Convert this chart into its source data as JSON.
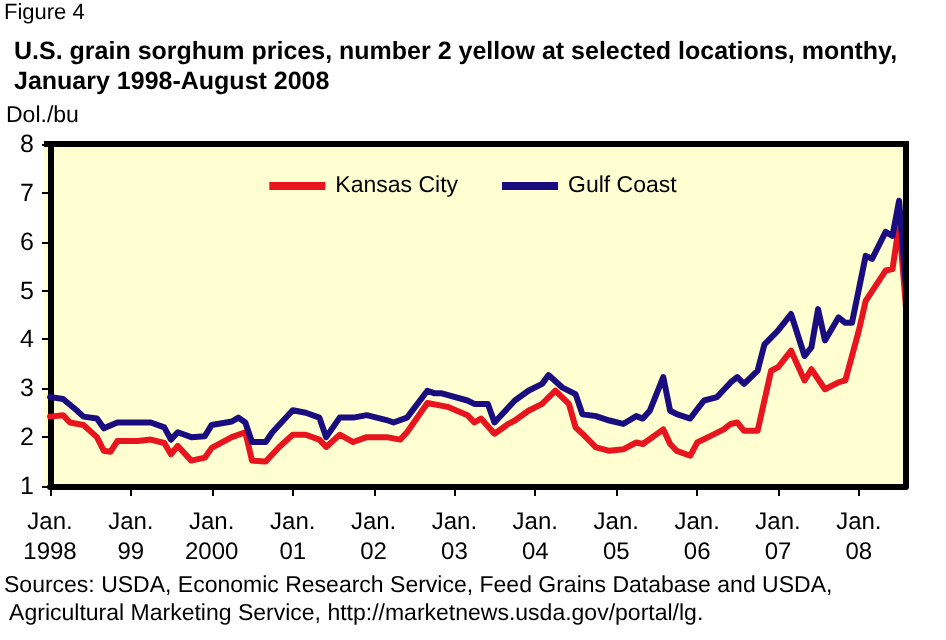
{
  "chart_data": {
    "type": "line",
    "title": "U.S. grain sorghum prices, number 2 yellow at selected locations, monthy, January 1998-August 2008",
    "ylabel": "Dol./bu",
    "annotations": [
      "Figure 4",
      "Sources: USDA, Economic Research Service, Feed Grains Database and USDA, Agricultural Marketing Service, http://marketnews.usda.gov/portal/lg."
    ],
    "xlim": [
      "1998-01",
      "2008-08"
    ],
    "xticks": [
      {
        "value": "1998-01",
        "label": "Jan.\n1998"
      },
      {
        "value": "1999-01",
        "label": "Jan.\n99"
      },
      {
        "value": "2000-01",
        "label": "Jan.\n2000"
      },
      {
        "value": "2001-01",
        "label": "Jan.\n01"
      },
      {
        "value": "2002-01",
        "label": "Jan.\n02"
      },
      {
        "value": "2003-01",
        "label": "Jan.\n03"
      },
      {
        "value": "2004-01",
        "label": "Jan.\n04"
      },
      {
        "value": "2005-01",
        "label": "Jan.\n05"
      },
      {
        "value": "2006-01",
        "label": "Jan.\n06"
      },
      {
        "value": "2007-01",
        "label": "Jan.\n07"
      },
      {
        "value": "2008-01",
        "label": "Jan.\n08"
      }
    ],
    "ylim": [
      1,
      8
    ],
    "yticks": [
      1,
      2,
      3,
      4,
      5,
      6,
      7,
      8
    ],
    "grid": false,
    "legend": "top",
    "marker": "none",
    "line_style": "solid",
    "series": [
      {
        "name": "Kansas City",
        "color": "#e8141e",
        "x": [
          "1998-01",
          "1998-03",
          "1998-04",
          "1998-06",
          "1998-08",
          "1998-09",
          "1998-10",
          "1998-11",
          "1999-02",
          "1999-04",
          "1999-06",
          "1999-07",
          "1999-08",
          "1999-10",
          "1999-12",
          "2000-01",
          "2000-04",
          "2000-06",
          "2000-07",
          "2000-09",
          "2000-11",
          "2001-01",
          "2001-03",
          "2001-05",
          "2001-06",
          "2001-08",
          "2001-10",
          "2001-12",
          "2002-03",
          "2002-05",
          "2002-06",
          "2002-09",
          "2002-12",
          "2003-03",
          "2003-04",
          "2003-05",
          "2003-07",
          "2003-09",
          "2003-10",
          "2003-12",
          "2004-02",
          "2004-04",
          "2004-06",
          "2004-07",
          "2004-08",
          "2004-10",
          "2004-12",
          "2005-02",
          "2005-04",
          "2005-05",
          "2005-08",
          "2005-09",
          "2005-10",
          "2005-12",
          "2006-01",
          "2006-03",
          "2006-05",
          "2006-06",
          "2006-07",
          "2006-08",
          "2006-10",
          "2006-12",
          "2007-01",
          "2007-03",
          "2007-05",
          "2007-06",
          "2007-08",
          "2007-10",
          "2007-11",
          "2008-01",
          "2008-02",
          "2008-05",
          "2008-06",
          "2008-07",
          "2008-08"
        ],
        "values": [
          2.42,
          2.45,
          2.3,
          2.25,
          2.0,
          1.72,
          1.7,
          1.92,
          1.92,
          1.95,
          1.88,
          1.65,
          1.82,
          1.52,
          1.58,
          1.78,
          2.0,
          2.1,
          1.52,
          1.5,
          1.8,
          2.05,
          2.05,
          1.95,
          1.8,
          2.05,
          1.9,
          2.0,
          2.0,
          1.95,
          2.1,
          2.7,
          2.62,
          2.45,
          2.3,
          2.38,
          2.07,
          2.27,
          2.34,
          2.54,
          2.68,
          2.95,
          2.68,
          2.2,
          2.07,
          1.79,
          1.72,
          1.75,
          1.89,
          1.86,
          2.16,
          1.86,
          1.72,
          1.62,
          1.89,
          2.02,
          2.16,
          2.27,
          2.3,
          2.13,
          2.13,
          3.36,
          3.43,
          3.77,
          3.16,
          3.39,
          2.98,
          3.12,
          3.16,
          4.18,
          4.79,
          5.41,
          5.44,
          6.36,
          4.66
        ]
      },
      {
        "name": "Gulf Coast",
        "color": "#1a0d80",
        "x": [
          "1998-01",
          "1998-03",
          "1998-05",
          "1998-06",
          "1998-08",
          "1998-09",
          "1998-11",
          "1999-02",
          "1999-04",
          "1999-06",
          "1999-07",
          "1999-08",
          "1999-10",
          "1999-12",
          "2000-01",
          "2000-04",
          "2000-05",
          "2000-06",
          "2000-07",
          "2000-09",
          "2000-10",
          "2001-01",
          "2001-03",
          "2001-05",
          "2001-06",
          "2001-08",
          "2001-10",
          "2001-12",
          "2002-03",
          "2002-04",
          "2002-06",
          "2002-09",
          "2002-10",
          "2002-11",
          "2003-03",
          "2003-04",
          "2003-06",
          "2003-07",
          "2003-10",
          "2003-12",
          "2004-02",
          "2004-03",
          "2004-05",
          "2004-07",
          "2004-08",
          "2004-10",
          "2004-12",
          "2005-02",
          "2005-04",
          "2005-05",
          "2005-06",
          "2005-08",
          "2005-09",
          "2005-10",
          "2005-12",
          "2006-01",
          "2006-02",
          "2006-04",
          "2006-06",
          "2006-07",
          "2006-08",
          "2006-10",
          "2006-11",
          "2007-01",
          "2007-03",
          "2007-05",
          "2007-06",
          "2007-07",
          "2007-08",
          "2007-10",
          "2007-11",
          "2007-12",
          "2008-02",
          "2008-03",
          "2008-05",
          "2008-06",
          "2008-07",
          "2008-08"
        ],
        "values": [
          2.82,
          2.78,
          2.55,
          2.42,
          2.38,
          2.18,
          2.3,
          2.3,
          2.3,
          2.2,
          1.95,
          2.1,
          2.0,
          2.02,
          2.25,
          2.32,
          2.4,
          2.3,
          1.9,
          1.9,
          2.1,
          2.55,
          2.5,
          2.4,
          2.0,
          2.4,
          2.4,
          2.45,
          2.35,
          2.3,
          2.4,
          2.95,
          2.9,
          2.9,
          2.75,
          2.68,
          2.68,
          2.3,
          2.75,
          2.95,
          3.09,
          3.27,
          3.02,
          2.88,
          2.47,
          2.43,
          2.34,
          2.27,
          2.43,
          2.38,
          2.54,
          3.23,
          2.54,
          2.47,
          2.38,
          2.57,
          2.75,
          2.82,
          3.12,
          3.23,
          3.09,
          3.36,
          3.9,
          4.18,
          4.52,
          3.66,
          3.84,
          4.62,
          3.98,
          4.45,
          4.34,
          4.34,
          5.71,
          5.65,
          6.2,
          6.12,
          6.84,
          5.07
        ]
      }
    ]
  }
}
